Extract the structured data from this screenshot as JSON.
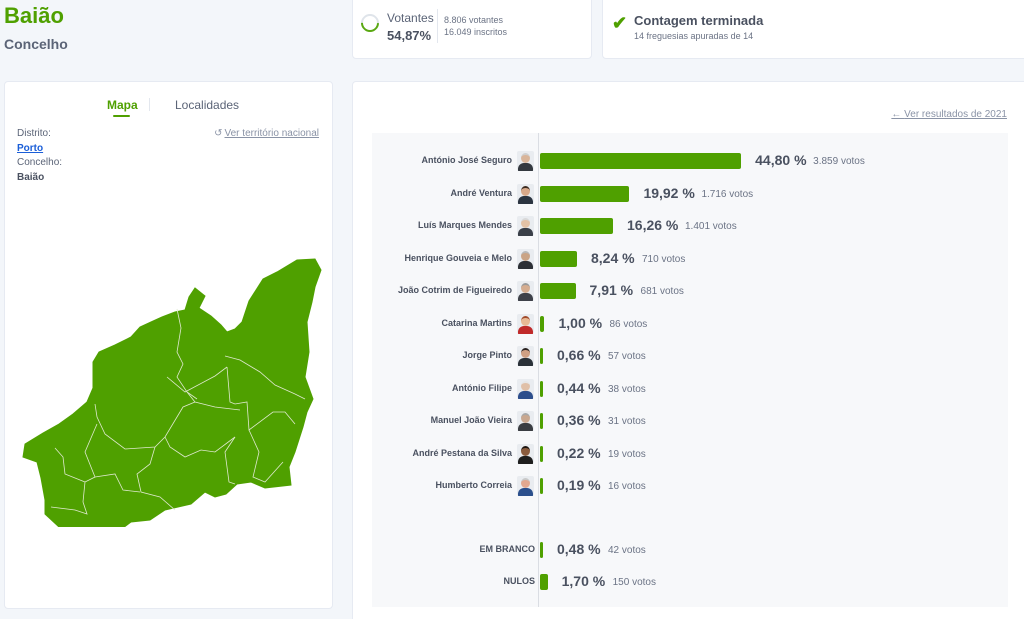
{
  "header": {
    "title": "Baião",
    "subtitle": "Concelho"
  },
  "turnout": {
    "label": "Votantes",
    "percent": "54,87%",
    "percent_value": 54.87,
    "voters": "8.806 votantes",
    "registered": "16.049 inscritos"
  },
  "count_status": {
    "icon": "check-icon",
    "title": "Contagem terminada",
    "detail": "14 freguesias apuradas de 14"
  },
  "map_panel": {
    "tabs": [
      {
        "label": "Mapa",
        "active": true
      },
      {
        "label": "Localidades",
        "active": false
      }
    ],
    "district_label": "Distrito:",
    "district_value": "Porto",
    "county_label": "Concelho:",
    "county_value": "Baião",
    "reset_link": "Ver território nacional",
    "map_color": "#4fa000"
  },
  "results": {
    "previous_link": "Ver resultados de 2021",
    "bar_color": "#4fa000",
    "candidates": [
      {
        "name": "António José Seguro",
        "percent": "44,80 %",
        "value": 44.8,
        "votes": "3.859 votos"
      },
      {
        "name": "André Ventura",
        "percent": "19,92 %",
        "value": 19.92,
        "votes": "1.716 votos"
      },
      {
        "name": "Luís Marques Mendes",
        "percent": "16,26 %",
        "value": 16.26,
        "votes": "1.401 votos"
      },
      {
        "name": "Henrique Gouveia e Melo",
        "percent": "8,24 %",
        "value": 8.24,
        "votes": "710 votos"
      },
      {
        "name": "João Cotrim de Figueiredo",
        "percent": "7,91 %",
        "value": 7.91,
        "votes": "681 votos"
      },
      {
        "name": "Catarina Martins",
        "percent": "1,00 %",
        "value": 1.0,
        "votes": "86 votos"
      },
      {
        "name": "Jorge Pinto",
        "percent": "0,66 %",
        "value": 0.66,
        "votes": "57 votos"
      },
      {
        "name": "António Filipe",
        "percent": "0,44 %",
        "value": 0.44,
        "votes": "38 votos"
      },
      {
        "name": "Manuel João Vieira",
        "percent": "0,36 %",
        "value": 0.36,
        "votes": "31 votos"
      },
      {
        "name": "André Pestana da Silva",
        "percent": "0,22 %",
        "value": 0.22,
        "votes": "19 votos"
      },
      {
        "name": "Humberto Correia",
        "percent": "0,19 %",
        "value": 0.19,
        "votes": "16 votos"
      }
    ],
    "others": [
      {
        "name": "EM BRANCO",
        "percent": "0,48 %",
        "value": 0.48,
        "votes": "42 votos"
      },
      {
        "name": "NULOS",
        "percent": "1,70 %",
        "value": 1.7,
        "votes": "150 votos"
      }
    ]
  }
}
